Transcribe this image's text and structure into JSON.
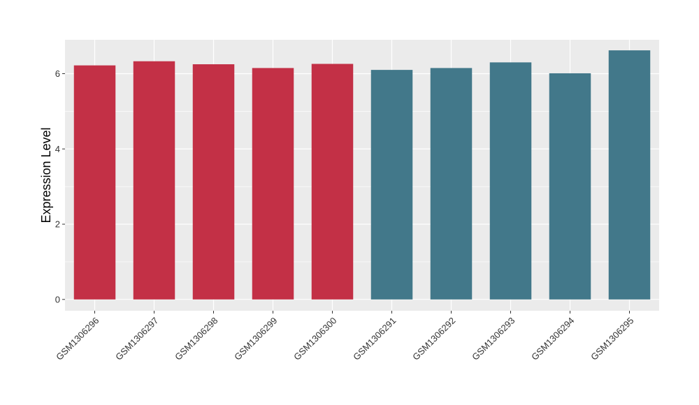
{
  "chart_data": {
    "type": "bar",
    "ylabel": "Expression Level",
    "xlabel": "",
    "ylim": [
      -0.3,
      6.9
    ],
    "yticks": [
      0,
      2,
      4,
      6
    ],
    "grid": true,
    "categories": [
      "GSM1306296",
      "GSM1306297",
      "GSM1306298",
      "GSM1306299",
      "GSM1306300",
      "GSM1306291",
      "GSM1306292",
      "GSM1306293",
      "GSM1306294",
      "GSM1306295"
    ],
    "values": [
      6.22,
      6.33,
      6.25,
      6.15,
      6.26,
      6.1,
      6.15,
      6.3,
      6.01,
      6.62
    ],
    "bar_colors": [
      "#c33046",
      "#c33046",
      "#c33046",
      "#c33046",
      "#c33046",
      "#42788a",
      "#42788a",
      "#42788a",
      "#42788a",
      "#42788a"
    ],
    "panel_background": "#ebebeb",
    "grid_color": "#ffffff"
  }
}
